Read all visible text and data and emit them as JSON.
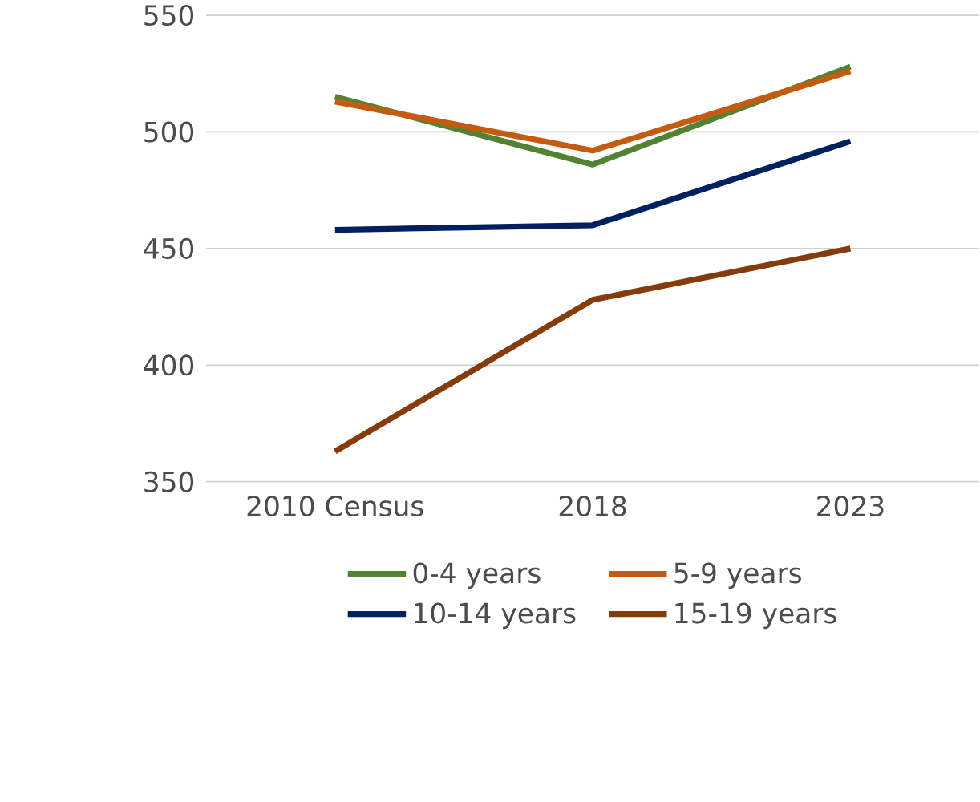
{
  "chart_data": {
    "type": "line",
    "categories": [
      "2010 Census",
      "2018",
      "2023"
    ],
    "series": [
      {
        "name": "0-4 years",
        "color": "#548235",
        "values": [
          515,
          486,
          528
        ]
      },
      {
        "name": "5-9 years",
        "color": "#c55a11",
        "values": [
          513,
          492,
          526
        ]
      },
      {
        "name": "10-14 years",
        "color": "#002060",
        "values": [
          458,
          460,
          496
        ]
      },
      {
        "name": "15-19 years",
        "color": "#843c0c",
        "values": [
          363,
          428,
          450
        ]
      }
    ],
    "ylim": [
      350,
      550
    ],
    "yticks": [
      350,
      400,
      450,
      500,
      550
    ],
    "grid": "y",
    "legend": "bottom",
    "marker": "none",
    "line_style": "solid"
  }
}
